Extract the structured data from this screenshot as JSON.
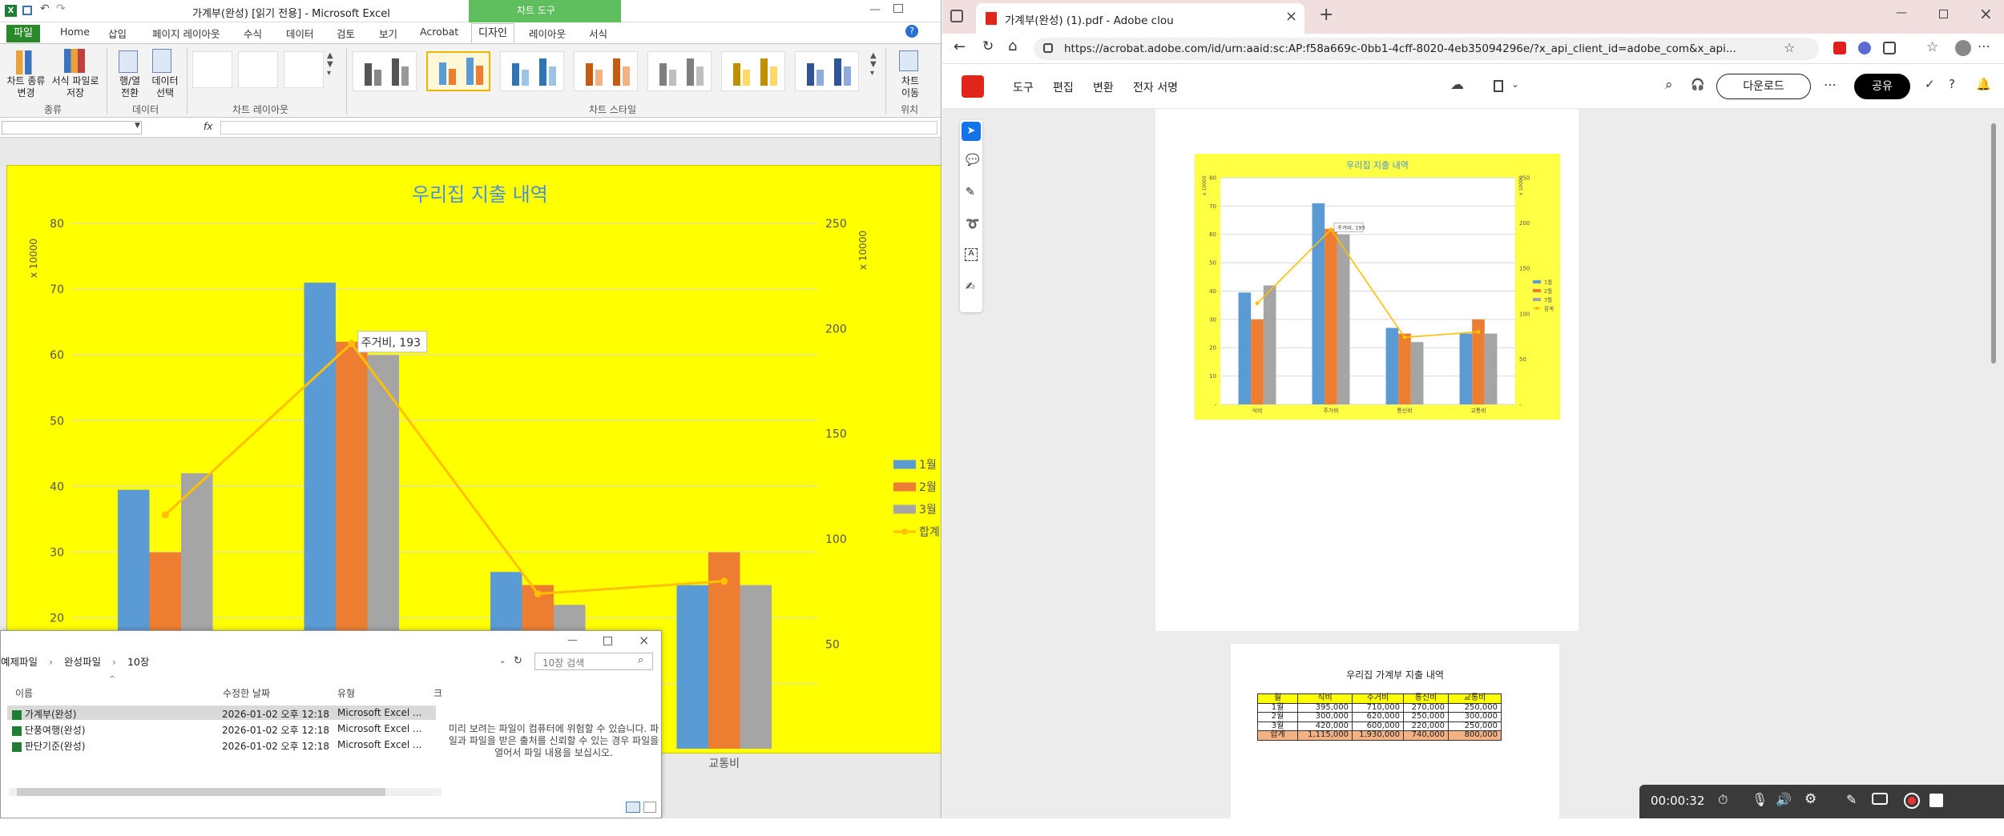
{
  "excel": {
    "title": "가계부(완성)  [읽기 전용]  -  Microsoft Excel",
    "context_tab": "차트 도구",
    "tabs": [
      "파일",
      "Home",
      "삽입",
      "페이지 레이아웃",
      "수식",
      "데이터",
      "검토",
      "보기",
      "Acrobat",
      "디자인",
      "레이아웃",
      "서식"
    ],
    "ribbon": {
      "btn_chart_type": "차트 종류\n변경",
      "btn_save_template": "서식 파일로\n저장",
      "btn_switch": "행/열\n전환",
      "btn_select_data": "데이터\n선택",
      "btn_move_chart": "차트\n이동",
      "group_type": "종류",
      "group_data": "데이터",
      "group_layout": "차트 레이아웃",
      "group_style": "차트 스타일",
      "group_location": "위치"
    },
    "fx_label": "fx"
  },
  "chart_data": [
    {
      "type": "bar",
      "title": "우리집 지출 내역",
      "categories": [
        "식비",
        "주거비",
        "통신비",
        "교통비"
      ],
      "series": [
        {
          "name": "1월",
          "values": [
            39.5,
            71,
            27,
            25
          ],
          "color": "#5b9bd5"
        },
        {
          "name": "2월",
          "values": [
            30,
            62,
            25,
            30
          ],
          "color": "#ed7d31"
        },
        {
          "name": "3월",
          "values": [
            42,
            60,
            22,
            25
          ],
          "color": "#a5a5a5"
        },
        {
          "name": "합계",
          "values": [
            111.5,
            193,
            74,
            80
          ],
          "color": "#ffc000",
          "type": "line",
          "axis": "secondary"
        }
      ],
      "ylabel": "x 10000",
      "y2label": "x 10000",
      "ylim": [
        0,
        80
      ],
      "y2lim": [
        0,
        250
      ],
      "yticks": [
        0,
        10,
        20,
        30,
        40,
        50,
        60,
        70,
        80
      ],
      "y2ticks": [
        0,
        50,
        100,
        150,
        200,
        250
      ],
      "annotation": "주거비, 193",
      "legend": "right",
      "grid": true
    }
  ],
  "explorer": {
    "breadcrumb": [
      "예제파일",
      "완성파일",
      "10장"
    ],
    "search_placeholder": "10장 검색",
    "columns": [
      "이름",
      "수정한 날짜",
      "유형",
      "크"
    ],
    "files": [
      {
        "name": "가계부(완성)",
        "date": "2026-01-02 오후 12:18",
        "type": "Microsoft Excel ..."
      },
      {
        "name": "단풍여행(완성)",
        "date": "2026-01-02 오후 12:18",
        "type": "Microsoft Excel ..."
      },
      {
        "name": "판단기준(완성)",
        "date": "2026-01-02 오후 12:18",
        "type": "Microsoft Excel ..."
      }
    ],
    "preview_msg": "미리 보려는 파일이 컴퓨터에 위험할 수 있습니다. 파일과 파일을 받은 출처를 신뢰할 수 있는 경우 파일을 열어서 파일 내용을 보십시오."
  },
  "edge": {
    "tab_title": "가계부(완성) (1).pdf - Adobe clou",
    "url": "https://acrobat.adobe.com/id/urn:aaid:sc:AP:f58a669c-0bb1-4cff-8020-4eb35094296e/?x_api_client_id=adobe_com&x_api...",
    "acrobat_menu": [
      "도구",
      "편집",
      "변환",
      "전자 서명"
    ],
    "download_label": "다운로드",
    "share_label": "공유"
  },
  "pdf": {
    "table_title": "우리집 가계부 지출 내역",
    "headers": [
      "월",
      "식비",
      "주거비",
      "통신비",
      "교통비"
    ],
    "rows": [
      [
        "1월",
        "395,000",
        "710,000",
        "270,000",
        "250,000"
      ],
      [
        "2월",
        "300,000",
        "620,000",
        "250,000",
        "300,000"
      ],
      [
        "3월",
        "420,000",
        "600,000",
        "220,000",
        "250,000"
      ]
    ],
    "total": [
      "합계",
      "1,115,000",
      "1,930,000",
      "740,000",
      "800,000"
    ]
  },
  "recorder": {
    "time": "00:00:32"
  },
  "colors": {
    "chart_bg": "#ffff00",
    "excel_green": "#2a8a2a",
    "adobe_red": "#e1251b"
  }
}
